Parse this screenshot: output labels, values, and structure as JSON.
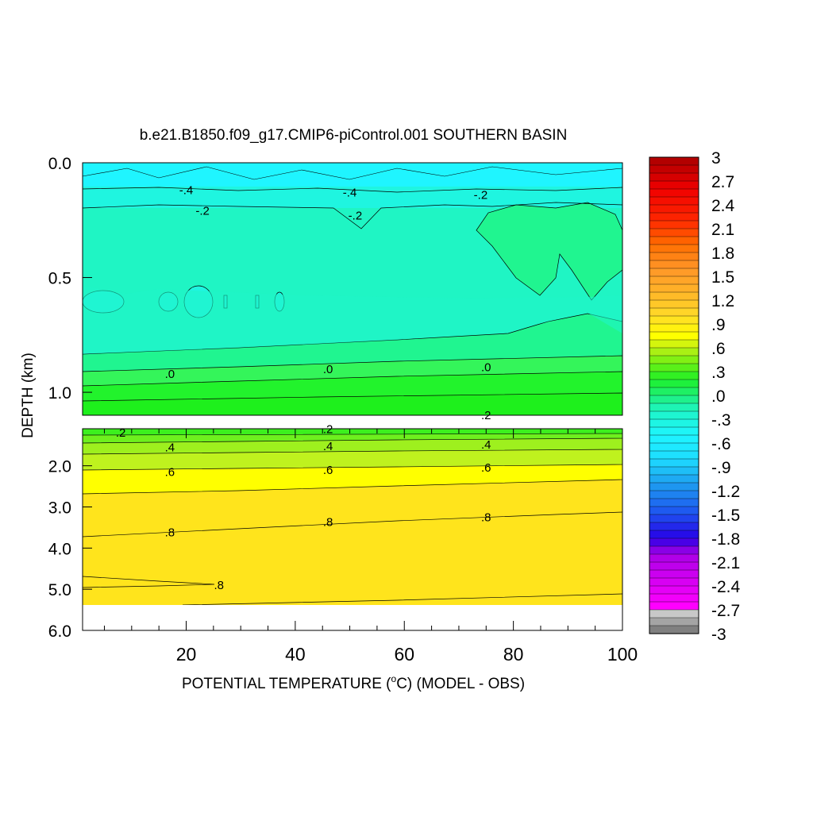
{
  "chart_data": {
    "type": "heatmap",
    "title": "b.e21.B1850.f09_g17.CMIP6-piControl.001 SOUTHERN BASIN",
    "xlabel": "POTENTIAL TEMPERATURE (",
    "xlabel_sup": "o",
    "xlabel_rest": "C) (MODEL - OBS)",
    "ylabel": "DEPTH (km)",
    "xlim": [
      1,
      100
    ],
    "x_ticks": [
      20,
      40,
      60,
      80,
      100
    ],
    "upper_panel": {
      "ylim": [
        0.0,
        1.1
      ],
      "y_ticks": [
        "0.0",
        "0.5",
        "1.0"
      ],
      "y_tick_values": [
        0.0,
        0.5,
        1.0
      ]
    },
    "lower_panel": {
      "ylim": [
        1.1,
        6.0
      ],
      "y_ticks": [
        "2.0",
        "3.0",
        "4.0",
        "5.0",
        "6.0"
      ],
      "y_tick_values": [
        2.0,
        3.0,
        4.0,
        5.0,
        6.0
      ],
      "bottom_topography_depth": 5.4
    },
    "colorbar": {
      "min": -3,
      "max": 3,
      "interval": 0.1,
      "tick_labels": [
        "3",
        "2.7",
        "2.4",
        "2.1",
        "1.8",
        "1.5",
        "1.2",
        ".9",
        ".6",
        ".3",
        ".0",
        "-.3",
        "-.6",
        "-.9",
        "-1.2",
        "-1.5",
        "-1.8",
        "-2.1",
        "-2.4",
        "-2.7",
        "-3"
      ]
    },
    "contour_labels": [
      {
        "text": "-.4",
        "x": 20,
        "depth": 0.12
      },
      {
        "text": "-.4",
        "x": 50,
        "depth": 0.13
      },
      {
        "text": "-.2",
        "x": 74,
        "depth": 0.14
      },
      {
        "text": "-.2",
        "x": 23,
        "depth": 0.21
      },
      {
        "text": "-.2",
        "x": 51,
        "depth": 0.23
      },
      {
        "text": ".0",
        "x": 17,
        "depth": 0.92
      },
      {
        "text": ".0",
        "x": 46,
        "depth": 0.9
      },
      {
        "text": ".0",
        "x": 75,
        "depth": 0.89
      },
      {
        "text": ".2",
        "x": 46,
        "depth": 1.11
      },
      {
        "text": ".2",
        "x": 75,
        "depth": 1.1
      },
      {
        "text": ".2",
        "x": 8,
        "depth": 1.2
      },
      {
        "text": ".4",
        "x": 17,
        "depth": 1.55
      },
      {
        "text": ".4",
        "x": 46,
        "depth": 1.52
      },
      {
        "text": ".4",
        "x": 75,
        "depth": 1.49
      },
      {
        "text": ".6",
        "x": 17,
        "depth": 2.15
      },
      {
        "text": ".6",
        "x": 46,
        "depth": 2.1
      },
      {
        "text": ".6",
        "x": 75,
        "depth": 2.05
      },
      {
        "text": ".8",
        "x": 17,
        "depth": 3.62
      },
      {
        "text": ".8",
        "x": 46,
        "depth": 3.37
      },
      {
        "text": ".8",
        "x": 75,
        "depth": 3.25
      },
      {
        "text": ".8",
        "x": 26,
        "depth": 4.9
      }
    ],
    "upper_bands": [
      {
        "depth_top": 0.0,
        "depth_bottom": 0.1,
        "value": -0.45
      },
      {
        "depth_top": 0.1,
        "depth_bottom": 0.2,
        "value": -0.3
      },
      {
        "depth_top": 0.2,
        "depth_bottom": 0.82,
        "value": -0.15
      },
      {
        "depth_top": 0.82,
        "depth_bottom": 0.9,
        "value": 0.05
      },
      {
        "depth_top": 0.9,
        "depth_bottom": 1.1,
        "value": 0.15
      }
    ],
    "lower_bands": [
      {
        "depth_top": 1.1,
        "depth_bottom": 1.4,
        "value": 0.35
      },
      {
        "depth_top": 1.4,
        "depth_bottom": 1.8,
        "value": 0.5
      },
      {
        "depth_top": 1.8,
        "depth_bottom": 2.3,
        "value": 0.65
      },
      {
        "depth_top": 2.3,
        "depth_bottom": 5.4,
        "value": 0.85
      }
    ]
  }
}
